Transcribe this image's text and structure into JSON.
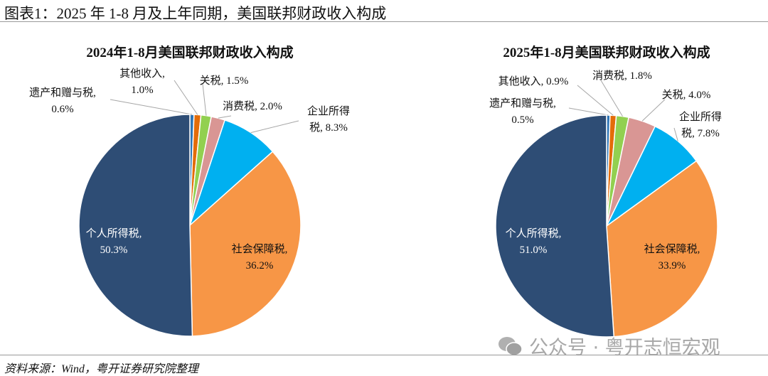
{
  "header": {
    "title": "图表1：2025 年 1-8 月及上年同期，美国联邦财政收入构成"
  },
  "footer": {
    "source": "资料来源：Wind，粤开证券研究院整理"
  },
  "watermark": {
    "icon": "wechat-icon",
    "text": "公众号 · 粤开志恒宏观"
  },
  "chart_data": [
    {
      "type": "pie",
      "title": "2024年1-8月美国联邦财政收入构成",
      "unit": "%",
      "slices": [
        {
          "label": "遗产和赠与税",
          "value": 0.6,
          "color": "#2e75b6"
        },
        {
          "label": "其他收入",
          "value": 1.0,
          "color": "#e36c09"
        },
        {
          "label": "关税",
          "value": 1.5,
          "color": "#92d050"
        },
        {
          "label": "消费税",
          "value": 2.0,
          "color": "#d99694"
        },
        {
          "label": "企业所得税",
          "value": 8.3,
          "color": "#00b0f0"
        },
        {
          "label": "社会保障税",
          "value": 36.2,
          "color": "#f79646"
        },
        {
          "label": "个人所得税",
          "value": 50.3,
          "color": "#2e4d75"
        }
      ]
    },
    {
      "type": "pie",
      "title": "2025年1-8月美国联邦财政收入构成",
      "unit": "%",
      "slices": [
        {
          "label": "遗产和赠与税",
          "value": 0.5,
          "color": "#2e75b6"
        },
        {
          "label": "其他收入",
          "value": 0.9,
          "color": "#e36c09"
        },
        {
          "label": "消费税",
          "value": 1.8,
          "color": "#92d050"
        },
        {
          "label": "关税",
          "value": 4.0,
          "color": "#d99694"
        },
        {
          "label": "企业所得税",
          "value": 7.8,
          "color": "#00b0f0"
        },
        {
          "label": "社会保障税",
          "value": 33.9,
          "color": "#f79646"
        },
        {
          "label": "个人所得税",
          "value": 51.0,
          "color": "#2e4d75"
        }
      ]
    }
  ]
}
